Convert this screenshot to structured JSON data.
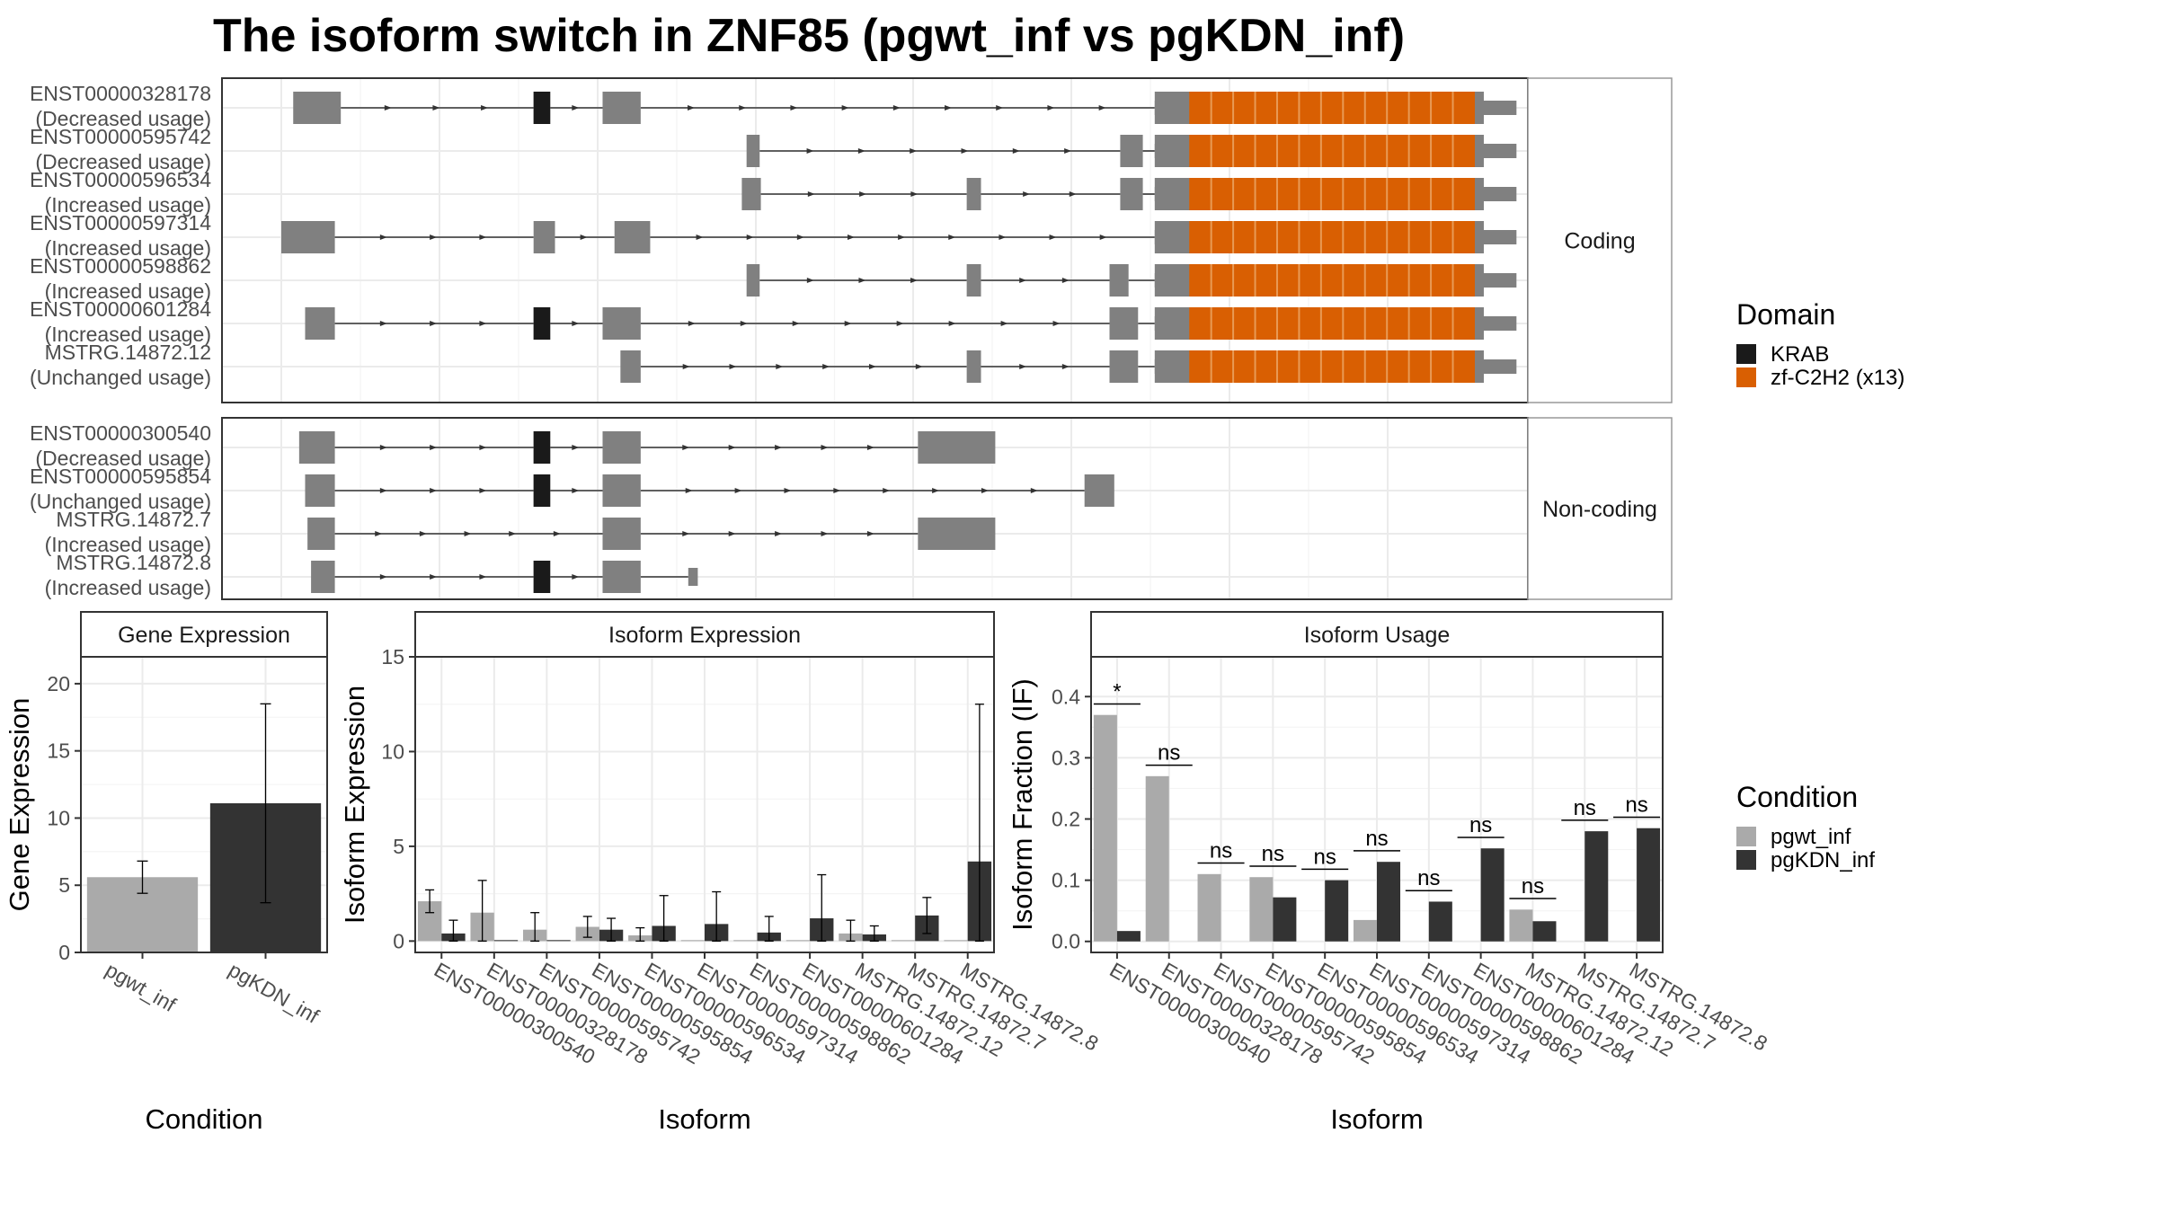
{
  "title": "The isoform switch in ZNF85 (pgwt_inf vs pgKDN_inf)",
  "colors": {
    "exon": "#808080",
    "krab": "#1a1a1a",
    "zf": "#d95f02",
    "cond_wt": "#aaaaaa",
    "cond_kdn": "#333333",
    "grid": "#ebebeb",
    "strip_bg": "#ffffff",
    "panel_border": "#333333"
  },
  "legends": {
    "domain": {
      "title": "Domain",
      "items": [
        {
          "label": "KRAB",
          "color": "#1a1a1a"
        },
        {
          "label": "zf-C2H2 (x13)",
          "color": "#d95f02"
        }
      ]
    },
    "condition": {
      "title": "Condition",
      "items": [
        {
          "label": "pgwt_inf",
          "color": "#aaaaaa"
        },
        {
          "label": "pgKDN_inf",
          "color": "#333333"
        }
      ]
    }
  },
  "chart_data": [
    {
      "type": "gene-structure",
      "coord_range": [
        0,
        1000
      ],
      "groups": [
        {
          "strip": "Coding",
          "isoforms": [
            {
              "id": "ENST00000328178",
              "status": "(Decreased usage)",
              "exons": [
                [
                  10,
                  50
                ],
                [
                  212,
                  226
                ],
                [
                  270,
                  302
                ],
                [
                  734,
                  1038
                ]
              ],
              "domains": [
                {
                  "name": "KRAB",
                  "start": 212,
                  "end": 226
                },
                {
                  "name": "zf",
                  "start": 763,
                  "end": 1003
                }
              ]
            },
            {
              "id": "ENST00000595742",
              "status": "(Decreased usage)",
              "exons": [
                [
                  391,
                  402
                ],
                [
                  705,
                  724
                ],
                [
                  734,
                  1038
                ]
              ],
              "domains": [
                {
                  "name": "zf",
                  "start": 763,
                  "end": 1003
                }
              ]
            },
            {
              "id": "ENST00000596534",
              "status": "(Increased usage)",
              "exons": [
                [
                  387,
                  403
                ],
                [
                  576,
                  588
                ],
                [
                  705,
                  724
                ],
                [
                  734,
                  1038
                ]
              ],
              "domains": [
                {
                  "name": "zf",
                  "start": 763,
                  "end": 1003
                }
              ]
            },
            {
              "id": "ENST00000597314",
              "status": "(Increased usage)",
              "exons": [
                [
                  0,
                  45
                ],
                [
                  212,
                  230
                ],
                [
                  280,
                  310
                ],
                [
                  734,
                  1038
                ]
              ],
              "domains": [
                {
                  "name": "zf",
                  "start": 763,
                  "end": 1003
                }
              ]
            },
            {
              "id": "ENST00000598862",
              "status": "(Increased usage)",
              "exons": [
                [
                  391,
                  402
                ],
                [
                  576,
                  588
                ],
                [
                  696,
                  712
                ],
                [
                  734,
                  1038
                ]
              ],
              "domains": [
                {
                  "name": "zf",
                  "start": 763,
                  "end": 1003
                }
              ]
            },
            {
              "id": "ENST00000601284",
              "status": "(Increased usage)",
              "exons": [
                [
                  20,
                  45
                ],
                [
                  212,
                  226
                ],
                [
                  270,
                  302
                ],
                [
                  696,
                  720
                ],
                [
                  734,
                  1038
                ]
              ],
              "domains": [
                {
                  "name": "KRAB",
                  "start": 212,
                  "end": 226
                },
                {
                  "name": "zf",
                  "start": 763,
                  "end": 1003
                }
              ]
            },
            {
              "id": "MSTRG.14872.12",
              "status": "(Unchanged usage)",
              "exons": [
                [
                  285,
                  302
                ],
                [
                  576,
                  588
                ],
                [
                  696,
                  720
                ],
                [
                  734,
                  1038
                ]
              ],
              "domains": [
                {
                  "name": "zf",
                  "start": 763,
                  "end": 1003
                }
              ]
            }
          ]
        },
        {
          "strip": "Non-coding",
          "isoforms": [
            {
              "id": "ENST00000300540",
              "status": "(Decreased usage)",
              "exons": [
                [
                  15,
                  45
                ],
                [
                  212,
                  226
                ],
                [
                  270,
                  302
                ],
                [
                  535,
                  600
                ]
              ],
              "domains": [
                {
                  "name": "KRAB",
                  "start": 212,
                  "end": 226
                }
              ]
            },
            {
              "id": "ENST00000595854",
              "status": "(Unchanged usage)",
              "exons": [
                [
                  20,
                  45
                ],
                [
                  212,
                  226
                ],
                [
                  270,
                  302
                ],
                [
                  675,
                  700
                ]
              ],
              "domains": [
                {
                  "name": "KRAB",
                  "start": 212,
                  "end": 226
                }
              ]
            },
            {
              "id": "MSTRG.14872.7",
              "status": "(Increased usage)",
              "exons": [
                [
                  22,
                  45
                ],
                [
                  270,
                  302
                ],
                [
                  535,
                  600
                ]
              ],
              "domains": []
            },
            {
              "id": "MSTRG.14872.8",
              "status": "(Increased usage)",
              "exons": [
                [
                  25,
                  45
                ],
                [
                  212,
                  226
                ],
                [
                  270,
                  302
                ],
                [
                  342,
                  350
                ]
              ],
              "domains": [
                {
                  "name": "KRAB",
                  "start": 212,
                  "end": 226
                }
              ]
            }
          ]
        }
      ]
    },
    {
      "type": "bar",
      "strip": "Gene Expression",
      "xlabel": "Condition",
      "ylabel": "Gene Expression",
      "categories": [
        "pgwt_inf",
        "pgKDN_inf"
      ],
      "values": [
        5.6,
        11.1
      ],
      "errors": [
        [
          4.4,
          6.8
        ],
        [
          3.7,
          18.5
        ]
      ],
      "ylim": [
        0,
        22
      ],
      "yticks": [
        0,
        5,
        10,
        15,
        20
      ]
    },
    {
      "type": "bar",
      "strip": "Isoform Expression",
      "xlabel": "Isoform",
      "ylabel": "Isoform Expression",
      "categories": [
        "ENST00000300540",
        "ENST00000328178",
        "ENST00000595742",
        "ENST00000595854",
        "ENST00000596534",
        "ENST00000597314",
        "ENST00000598862",
        "ENST00000601284",
        "MSTRG.14872.12",
        "MSTRG.14872.7",
        "MSTRG.14872.8"
      ],
      "series": [
        {
          "name": "pgwt_inf",
          "values": [
            2.1,
            1.5,
            0.6,
            0.75,
            0.3,
            0.05,
            0.05,
            0.05,
            0.4,
            0.05,
            0.05
          ],
          "errors": [
            [
              1.5,
              2.7
            ],
            [
              0,
              3.2
            ],
            [
              0,
              1.5
            ],
            [
              0.2,
              1.3
            ],
            [
              0,
              0.7
            ],
            null,
            null,
            null,
            [
              0,
              1.1
            ],
            null,
            null
          ]
        },
        {
          "name": "pgKDN_inf",
          "values": [
            0.4,
            0.05,
            0.05,
            0.6,
            0.8,
            0.9,
            0.45,
            1.2,
            0.35,
            1.35,
            4.2
          ],
          "errors": [
            [
              0,
              1.1
            ],
            null,
            null,
            [
              0,
              1.2
            ],
            [
              0,
              2.4
            ],
            [
              0,
              2.6
            ],
            [
              0,
              1.3
            ],
            [
              0,
              3.5
            ],
            [
              0,
              0.8
            ],
            [
              0.4,
              2.3
            ],
            [
              0,
              12.5
            ]
          ]
        }
      ],
      "ylim": [
        -0.6,
        15
      ],
      "yticks": [
        0,
        5,
        10,
        15
      ]
    },
    {
      "type": "bar",
      "strip": "Isoform Usage",
      "xlabel": "Isoform",
      "ylabel": "Isoform Fraction (IF)",
      "categories": [
        "ENST00000300540",
        "ENST00000328178",
        "ENST00000595742",
        "ENST00000595854",
        "ENST00000596534",
        "ENST00000597314",
        "ENST00000598862",
        "ENST00000601284",
        "MSTRG.14872.12",
        "MSTRG.14872.7",
        "MSTRG.14872.8"
      ],
      "series": [
        {
          "name": "pgwt_inf",
          "values": [
            0.37,
            0.27,
            0.11,
            0.105,
            0.0,
            0.035,
            0.0,
            0.0,
            0.052,
            0.0,
            0.0
          ]
        },
        {
          "name": "pgKDN_inf",
          "values": [
            0.017,
            0.0,
            0.0,
            0.072,
            0.1,
            0.13,
            0.065,
            0.152,
            0.033,
            0.18,
            0.185
          ]
        }
      ],
      "significance": [
        "*",
        "ns",
        "ns",
        "ns",
        "ns",
        "ns",
        "ns",
        "ns",
        "ns",
        "ns",
        "ns"
      ],
      "ylim": [
        -0.018,
        0.465
      ],
      "yticks": [
        0.0,
        0.1,
        0.2,
        0.3,
        0.4
      ],
      "ytick_labels": [
        "0.0",
        "0.1",
        "0.2",
        "0.3",
        "0.4"
      ]
    }
  ]
}
